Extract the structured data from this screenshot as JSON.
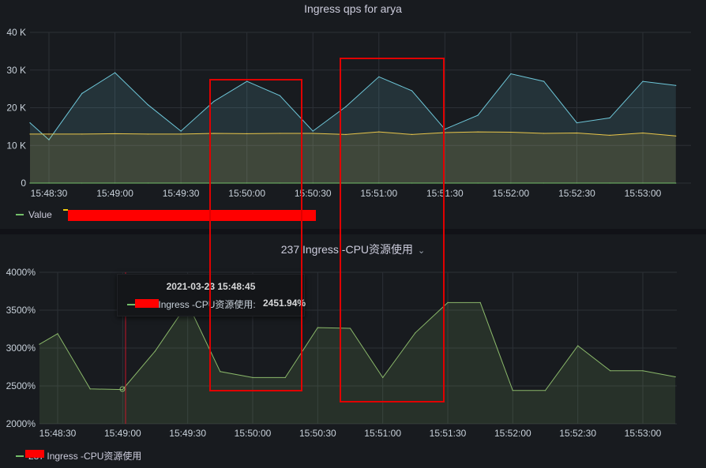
{
  "panels": [
    {
      "title": "Ingress qps for arya",
      "legend": [
        {
          "label": "Value",
          "color": "#73bf69"
        },
        {
          "label": "",
          "color": "#f2cc0c",
          "redacted": true
        }
      ]
    },
    {
      "title": "237 Ingress -CPU资源使用",
      "legend": [
        {
          "label": "237 Ingress -CPU资源使用",
          "color": "#73bf69",
          "redacted_prefix": true
        }
      ],
      "tooltip": {
        "time": "2021-03-23 15:48:45",
        "series": "237 Ingress -CPU资源使用:",
        "value": "2451.94%"
      }
    }
  ],
  "colors": {
    "series_blue": "#6ec7d9",
    "series_yellow": "#e8c54a",
    "series_green": "#8ab86a",
    "annotation_red": "#e00000"
  },
  "chart_data": [
    {
      "type": "area",
      "title": "Ingress qps for arya",
      "x": [
        "15:48:20",
        "15:48:30",
        "15:48:45",
        "15:49:00",
        "15:49:15",
        "15:49:30",
        "15:49:45",
        "15:50:00",
        "15:50:15",
        "15:50:30",
        "15:50:45",
        "15:51:00",
        "15:51:15",
        "15:51:30",
        "15:51:45",
        "15:52:00",
        "15:52:15",
        "15:52:30",
        "15:52:45",
        "15:53:00",
        "15:53:15"
      ],
      "xticks": [
        "15:48:30",
        "15:49:00",
        "15:49:30",
        "15:50:00",
        "15:50:30",
        "15:51:00",
        "15:51:30",
        "15:52:00",
        "15:52:30",
        "15:53:00"
      ],
      "yticks": [
        "0",
        "10 K",
        "20 K",
        "30 K",
        "40 K"
      ],
      "ylim": [
        0,
        40000
      ],
      "series": [
        {
          "name": "Value",
          "color": "#6ec7d9",
          "values": [
            16000,
            11500,
            23800,
            29300,
            20800,
            13800,
            21700,
            27000,
            23200,
            13800,
            20300,
            28200,
            24500,
            14300,
            18000,
            29000,
            27000,
            16000,
            17300,
            27000,
            25900
          ]
        },
        {
          "name": "",
          "color": "#e8c54a",
          "values": [
            13000,
            13000,
            13000,
            13100,
            13000,
            13000,
            13200,
            13100,
            13200,
            13200,
            12900,
            13600,
            12900,
            13400,
            13600,
            13500,
            13200,
            13300,
            12700,
            13300,
            12500
          ]
        },
        {
          "name": "",
          "color": "#73bf69",
          "values": [
            0,
            0,
            0,
            0,
            0,
            0,
            0,
            0,
            0,
            0,
            0,
            0,
            0,
            0,
            0,
            0,
            0,
            0,
            0,
            0,
            0
          ]
        }
      ],
      "grid": true,
      "legend_position": "bottom-left"
    },
    {
      "type": "area",
      "title": "237 Ingress -CPU资源使用",
      "x": [
        "15:48:15",
        "15:48:30",
        "15:48:45",
        "15:49:00",
        "15:49:15",
        "15:49:30",
        "15:49:45",
        "15:50:00",
        "15:50:15",
        "15:50:30",
        "15:50:45",
        "15:51:00",
        "15:51:15",
        "15:51:30",
        "15:51:45",
        "15:52:00",
        "15:52:15",
        "15:52:30",
        "15:52:45",
        "15:53:00",
        "15:53:15"
      ],
      "xticks": [
        "15:48:30",
        "15:49:00",
        "15:49:30",
        "15:50:00",
        "15:50:30",
        "15:51:00",
        "15:51:30",
        "15:52:00",
        "15:52:30",
        "15:53:00"
      ],
      "yticks": [
        "2000%",
        "2500%",
        "3000%",
        "3500%",
        "4000%"
      ],
      "ylim": [
        2000,
        4000
      ],
      "series": [
        {
          "name": "237 Ingress -CPU资源使用",
          "color": "#8ab86a",
          "values": [
            3050,
            3190,
            2460,
            2452,
            2960,
            3590,
            2690,
            2610,
            2610,
            3270,
            3260,
            2610,
            3200,
            3600,
            3600,
            2440,
            2440,
            3030,
            2700,
            2700,
            2620
          ]
        }
      ],
      "grid": true,
      "legend_position": "bottom-left"
    }
  ]
}
